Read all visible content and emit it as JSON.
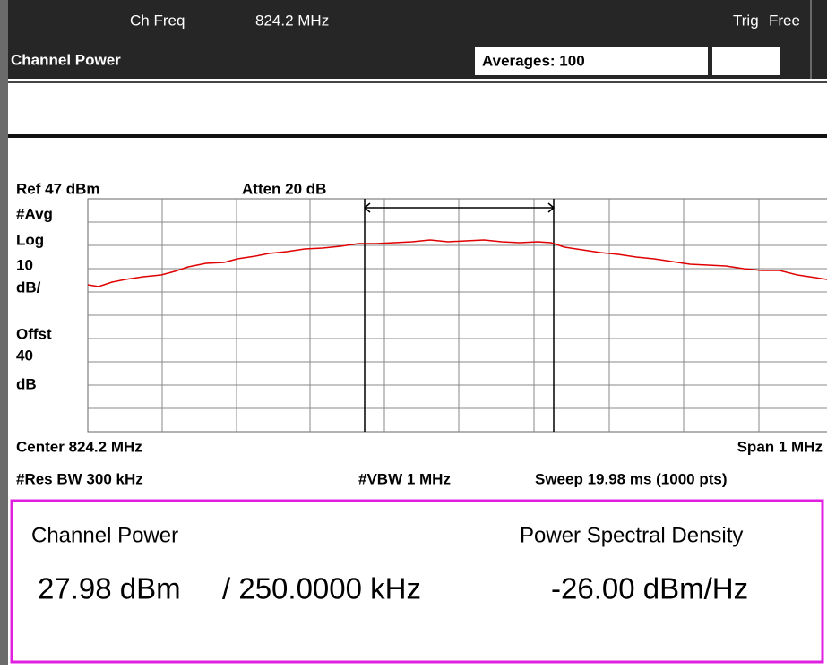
{
  "header": {
    "ch_freq_label": "Ch Freq",
    "ch_freq": "824.2 MHz",
    "trig_label": "Trig",
    "trig_value": "Free",
    "mode": "Channel Power",
    "averages": "Averages: 100"
  },
  "graph": {
    "ref": "Ref 47 dBm",
    "atten": "Atten 20 dB",
    "left_labels": [
      "#Avg",
      "Log",
      "10",
      "dB/",
      "Offst",
      "40",
      "dB"
    ],
    "center": "Center 824.2 MHz",
    "span": "Span 1 MHz",
    "res_bw": "#Res BW 300 kHz",
    "vbw": "#VBW 1 MHz",
    "sweep": "Sweep 19.98 ms (1000 pts)"
  },
  "results": {
    "channel_power_label": "Channel Power",
    "channel_power": "27.98 dBm",
    "bandwidth": "/ 250.0000 kHz",
    "psd_label": "Power Spectral Density",
    "psd": "-26.00 dBm/Hz"
  }
}
